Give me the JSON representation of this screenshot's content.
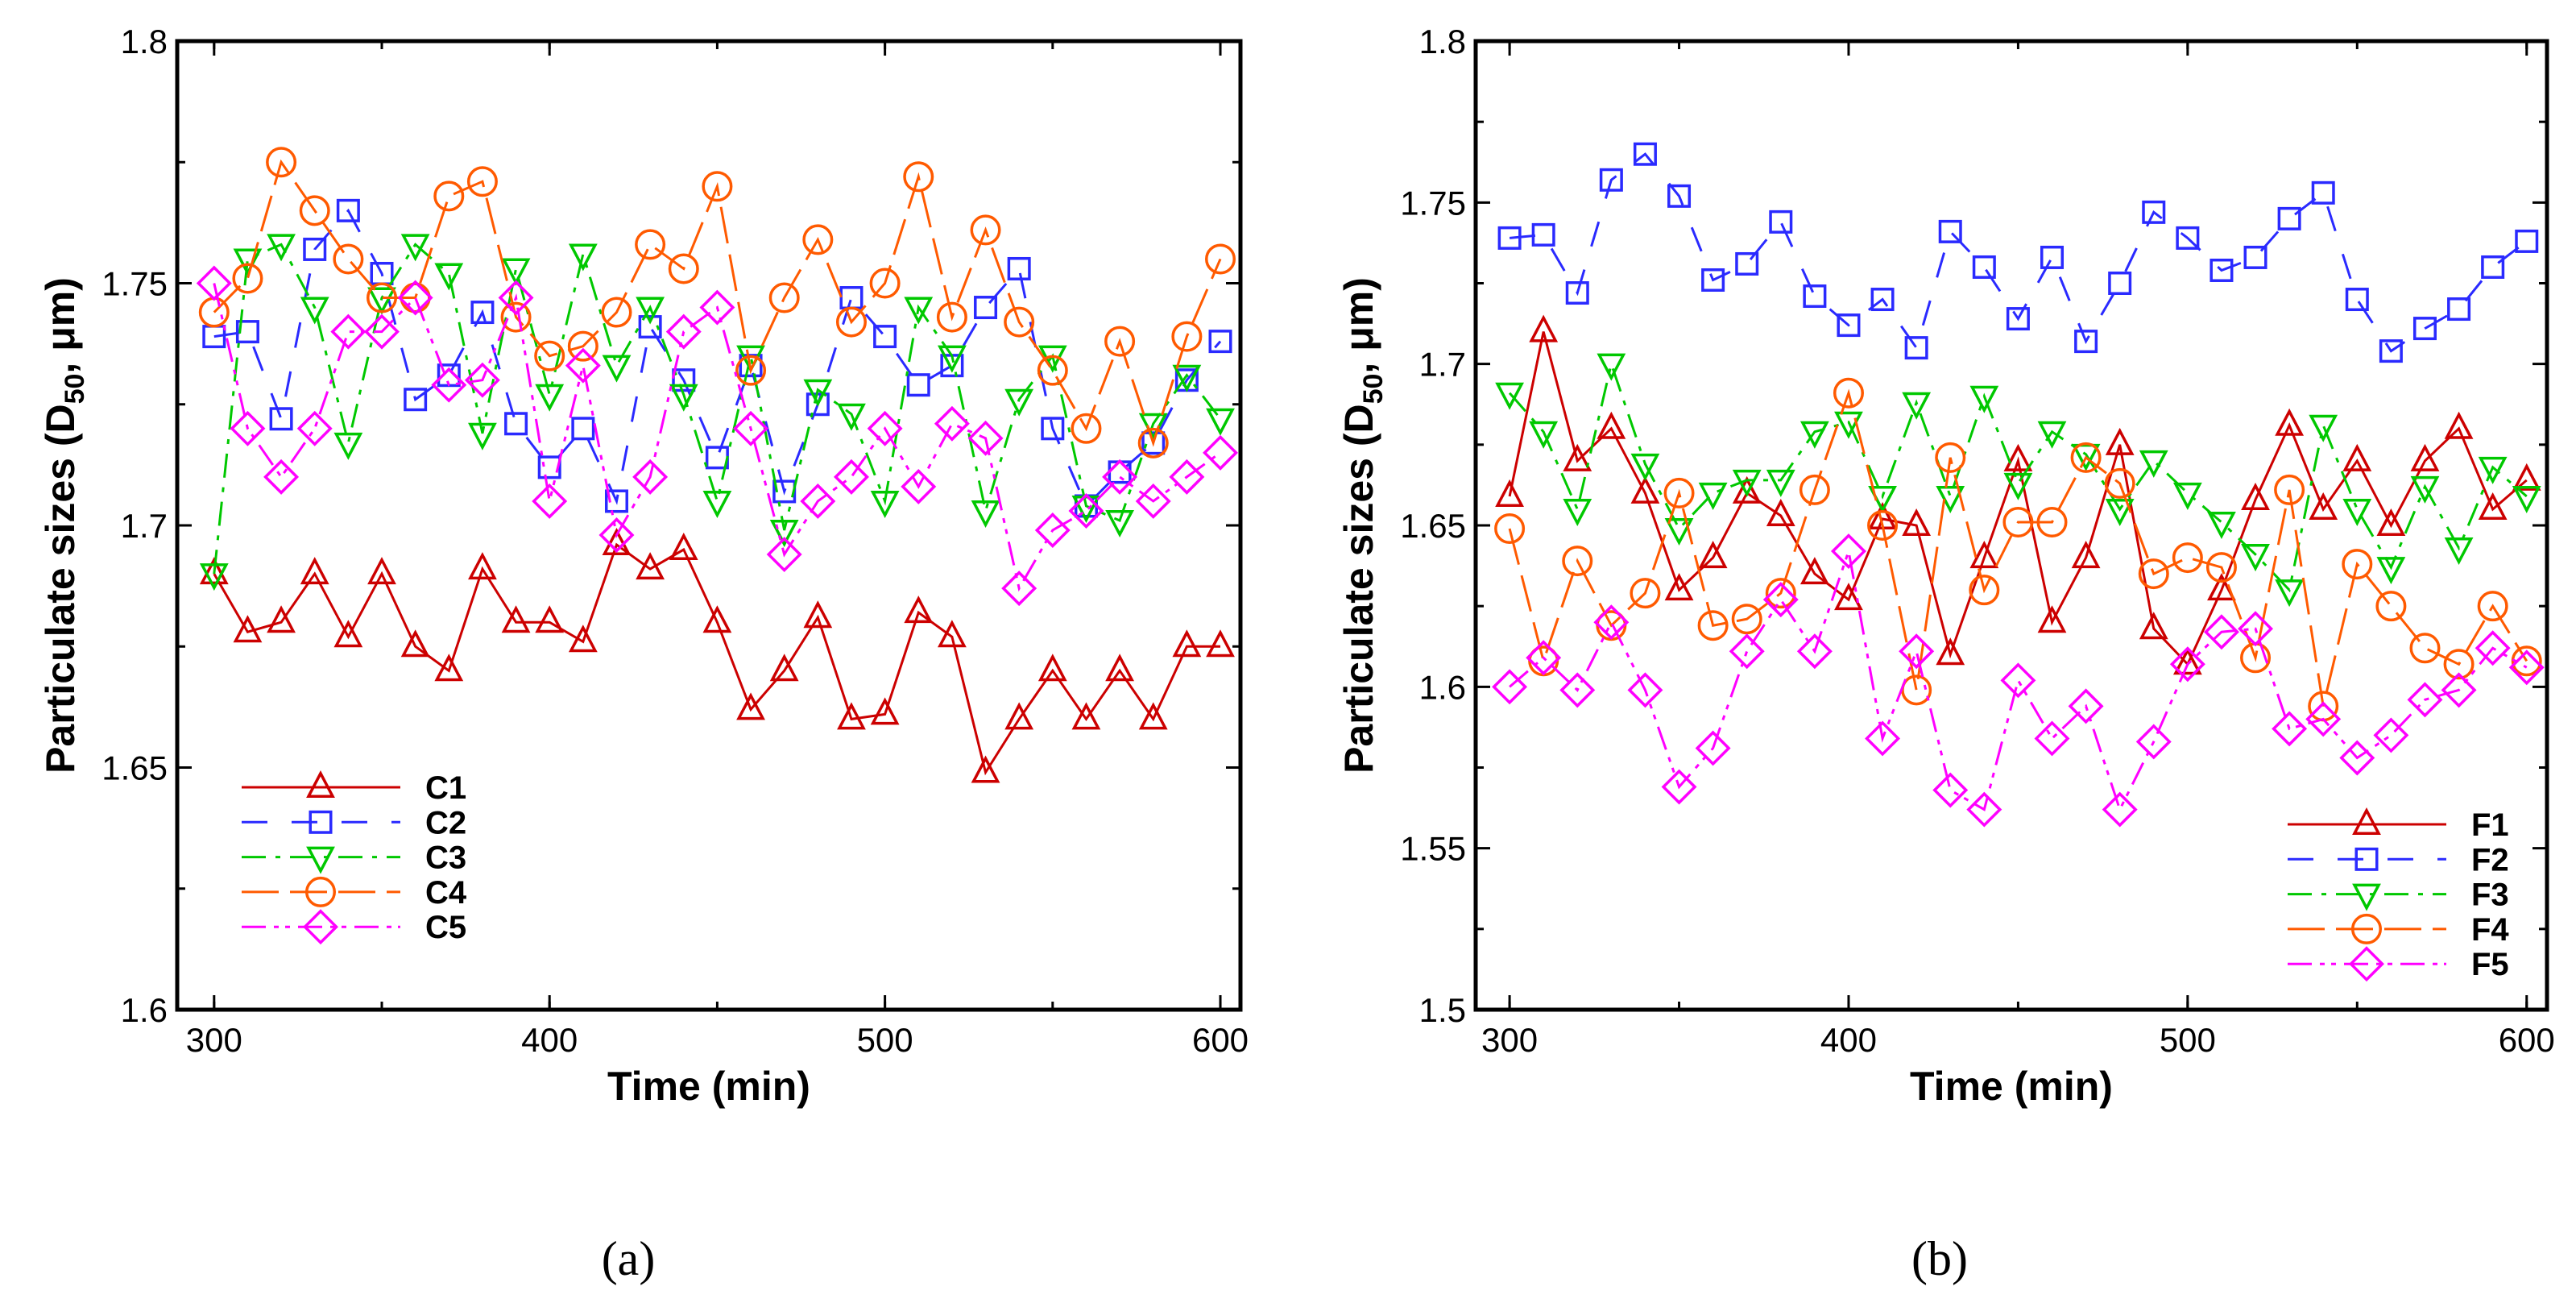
{
  "chart_data": [
    {
      "type": "line",
      "panel_label": "(a)",
      "xlabel": "Time (min)",
      "ylabel": {
        "prefix": "Particulate sizes (D",
        "sub": "50",
        "suffix": ", μm)"
      },
      "xlim": [
        289,
        606
      ],
      "ylim": [
        1.6,
        1.8
      ],
      "xticks": [
        300,
        400,
        500,
        600
      ],
      "yticks": [
        1.6,
        1.65,
        1.7,
        1.75,
        1.8
      ],
      "ytick_labels": [
        "1.6",
        "1.65",
        "1.7",
        "1.75",
        "1.8"
      ],
      "legend_position": "bottom-left",
      "grid": false,
      "x": [
        300,
        310,
        320,
        330,
        340,
        350,
        360,
        370,
        380,
        390,
        400,
        410,
        420,
        430,
        440,
        450,
        460,
        470,
        480,
        490,
        500,
        510,
        520,
        530,
        540,
        550,
        560,
        570,
        580,
        590,
        600
      ],
      "series": [
        {
          "name": "C1",
          "color": "#cc0000",
          "marker": "triangle-up",
          "dash": "solid",
          "values": [
            1.69,
            1.678,
            1.68,
            1.69,
            1.677,
            1.69,
            1.675,
            1.67,
            1.691,
            1.68,
            1.68,
            1.676,
            1.696,
            1.691,
            1.695,
            1.68,
            1.662,
            1.67,
            1.681,
            1.66,
            1.661,
            1.682,
            1.677,
            1.649,
            1.66,
            1.67,
            1.66,
            1.67,
            1.66,
            1.675,
            1.675
          ]
        },
        {
          "name": "C2",
          "color": "#2a2aff",
          "marker": "square",
          "dash": "dashed",
          "values": [
            1.739,
            1.74,
            1.722,
            1.757,
            1.765,
            1.752,
            1.726,
            1.731,
            1.744,
            1.721,
            1.712,
            1.72,
            1.705,
            1.741,
            1.73,
            1.714,
            1.733,
            1.707,
            1.725,
            1.747,
            1.739,
            1.729,
            1.733,
            1.745,
            1.753,
            1.72,
            1.704,
            1.711,
            1.717,
            1.73,
            1.738
          ]
        },
        {
          "name": "C3",
          "color": "#00c800",
          "marker": "triangle-down",
          "dash": "dashdot",
          "values": [
            1.69,
            1.755,
            1.758,
            1.745,
            1.717,
            1.747,
            1.758,
            1.752,
            1.719,
            1.753,
            1.727,
            1.756,
            1.733,
            1.745,
            1.727,
            1.705,
            1.735,
            1.699,
            1.728,
            1.723,
            1.705,
            1.745,
            1.735,
            1.703,
            1.726,
            1.735,
            1.704,
            1.701,
            1.721,
            1.731,
            1.722
          ]
        },
        {
          "name": "C4",
          "color": "#ff5a00",
          "marker": "circle",
          "dash": "longdash",
          "values": [
            1.744,
            1.751,
            1.775,
            1.765,
            1.755,
            1.747,
            1.747,
            1.768,
            1.771,
            1.743,
            1.735,
            1.737,
            1.744,
            1.758,
            1.753,
            1.77,
            1.732,
            1.747,
            1.759,
            1.742,
            1.75,
            1.772,
            1.743,
            1.761,
            1.742,
            1.732,
            1.72,
            1.738,
            1.717,
            1.739,
            1.755
          ]
        },
        {
          "name": "C5",
          "color": "#ff00ff",
          "marker": "diamond",
          "dash": "dashdotdot",
          "values": [
            1.75,
            1.72,
            1.71,
            1.72,
            1.74,
            1.74,
            1.747,
            1.729,
            1.73,
            1.747,
            1.705,
            1.733,
            1.698,
            1.71,
            1.74,
            1.745,
            1.72,
            1.694,
            1.705,
            1.71,
            1.72,
            1.708,
            1.721,
            1.718,
            1.687,
            1.699,
            1.703,
            1.71,
            1.705,
            1.71,
            1.715
          ]
        }
      ]
    },
    {
      "type": "line",
      "panel_label": "(b)",
      "xlabel": "Time (min)",
      "ylabel": {
        "prefix": "Particulate sizes (D",
        "sub": "50",
        "suffix": ", μm)"
      },
      "xlim": [
        290,
        606
      ],
      "ylim": [
        1.5,
        1.8
      ],
      "xticks": [
        300,
        400,
        500,
        600
      ],
      "yticks": [
        1.5,
        1.55,
        1.6,
        1.65,
        1.7,
        1.75,
        1.8
      ],
      "ytick_labels": [
        "1.5",
        "1.55",
        "1.6",
        "1.65",
        "1.7",
        "1.75",
        "1.8"
      ],
      "legend_position": "bottom-right",
      "grid": false,
      "x": [
        300,
        310,
        320,
        330,
        340,
        350,
        360,
        370,
        380,
        390,
        400,
        410,
        420,
        430,
        440,
        450,
        460,
        470,
        480,
        490,
        500,
        510,
        520,
        530,
        540,
        550,
        560,
        570,
        580,
        590,
        600
      ],
      "series": [
        {
          "name": "F1",
          "color": "#cc0000",
          "marker": "triangle-up",
          "dash": "solid",
          "values": [
            1.659,
            1.71,
            1.67,
            1.68,
            1.66,
            1.63,
            1.64,
            1.66,
            1.653,
            1.635,
            1.627,
            1.652,
            1.65,
            1.61,
            1.64,
            1.67,
            1.62,
            1.64,
            1.675,
            1.618,
            1.607,
            1.63,
            1.658,
            1.681,
            1.655,
            1.67,
            1.65,
            1.67,
            1.68,
            1.655,
            1.664
          ]
        },
        {
          "name": "F2",
          "color": "#2a2aff",
          "marker": "square",
          "dash": "dashed",
          "values": [
            1.739,
            1.74,
            1.722,
            1.757,
            1.765,
            1.752,
            1.726,
            1.731,
            1.744,
            1.721,
            1.712,
            1.72,
            1.705,
            1.741,
            1.73,
            1.714,
            1.733,
            1.707,
            1.725,
            1.747,
            1.739,
            1.729,
            1.733,
            1.745,
            1.753,
            1.72,
            1.704,
            1.711,
            1.717,
            1.73,
            1.738
          ]
        },
        {
          "name": "F3",
          "color": "#00c800",
          "marker": "triangle-down",
          "dash": "dashdot",
          "values": [
            1.691,
            1.679,
            1.655,
            1.7,
            1.669,
            1.649,
            1.66,
            1.664,
            1.664,
            1.679,
            1.682,
            1.659,
            1.688,
            1.659,
            1.69,
            1.663,
            1.679,
            1.672,
            1.655,
            1.67,
            1.66,
            1.651,
            1.641,
            1.63,
            1.681,
            1.655,
            1.637,
            1.662,
            1.643,
            1.668,
            1.659
          ]
        },
        {
          "name": "F4",
          "color": "#ff5a00",
          "marker": "circle",
          "dash": "longdash",
          "values": [
            1.649,
            1.608,
            1.639,
            1.619,
            1.629,
            1.66,
            1.619,
            1.621,
            1.629,
            1.661,
            1.691,
            1.65,
            1.599,
            1.671,
            1.63,
            1.651,
            1.651,
            1.671,
            1.663,
            1.635,
            1.64,
            1.637,
            1.609,
            1.661,
            1.594,
            1.638,
            1.625,
            1.612,
            1.607,
            1.625,
            1.608
          ]
        },
        {
          "name": "F5",
          "color": "#ff00ff",
          "marker": "diamond",
          "dash": "dashdotdot",
          "values": [
            1.6,
            1.609,
            1.599,
            1.62,
            1.599,
            1.569,
            1.581,
            1.611,
            1.627,
            1.611,
            1.642,
            1.584,
            1.611,
            1.568,
            1.562,
            1.602,
            1.584,
            1.594,
            1.562,
            1.583,
            1.607,
            1.617,
            1.618,
            1.587,
            1.59,
            1.578,
            1.585,
            1.596,
            1.599,
            1.612,
            1.606
          ]
        }
      ]
    }
  ]
}
